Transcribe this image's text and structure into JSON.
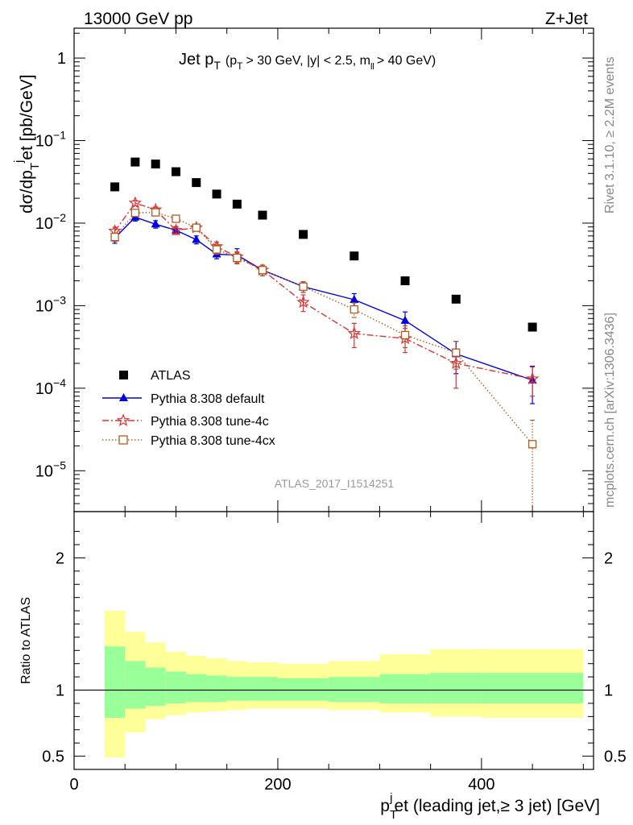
{
  "header": {
    "left": "13000 GeV pp",
    "right": "Z+Jet"
  },
  "side_labels": {
    "rivet": "Rivet 3.1.10, ≥ 2.2M events",
    "mcplots": "mcplots.cern.ch [arXiv:1306.3436]"
  },
  "analysis_id": "ATLAS_2017_I1514251",
  "chart_data": [
    {
      "type": "scatter",
      "panel": "main",
      "title": {
        "main": "Jet p",
        "main_sub": "T",
        "cut_open": "(p",
        "cut_sub": "T",
        "cut_mid": "> 30 GeV, |y| < 2.5, m",
        "cut_ll": "ll",
        "cut_close": "> 40 GeV)"
      },
      "ylabel": {
        "pre": "dσ/dp",
        "sub": "T",
        "sup": "j",
        "post": "et [pb/GeV]"
      },
      "yscale": "log",
      "ylim": [
        3.2e-06,
        2.3
      ],
      "xlim": [
        0,
        510
      ],
      "y_ticks": [
        {
          "value": 1,
          "label": "1",
          "sup": ""
        },
        {
          "value": 0.1,
          "label": "10",
          "sup": "−1"
        },
        {
          "value": 0.01,
          "label": "10",
          "sup": "−2"
        },
        {
          "value": 0.001,
          "label": "10",
          "sup": "−3"
        },
        {
          "value": 0.0001,
          "label": "10",
          "sup": "−4"
        },
        {
          "value": 1e-05,
          "label": "10",
          "sup": "−5"
        }
      ],
      "legend_position": "bottom-left",
      "series": [
        {
          "name": "ATLAS",
          "color": "#000000",
          "marker": "square-filled",
          "x": [
            40,
            60,
            80,
            100,
            120,
            140,
            160,
            185,
            225,
            275,
            325,
            375,
            450
          ],
          "y": [
            0.0275,
            0.055,
            0.052,
            0.042,
            0.031,
            0.0225,
            0.017,
            0.0125,
            0.0073,
            0.004,
            0.002,
            0.0012,
            0.00055
          ],
          "err": [
            0,
            0,
            0,
            0,
            0,
            0,
            0,
            0,
            0,
            0,
            0,
            0,
            0
          ]
        },
        {
          "name": "Pythia 8.308 default",
          "color": "#0000dd",
          "marker": "triangle-filled",
          "line": "solid",
          "x": [
            40,
            60,
            80,
            100,
            120,
            140,
            160,
            185,
            225,
            275,
            325,
            375,
            450
          ],
          "y": [
            0.0066,
            0.0118,
            0.0097,
            0.0082,
            0.0063,
            0.0042,
            0.0041,
            0.0027,
            0.0017,
            0.00118,
            0.00066,
            0.00026,
            0.000125
          ],
          "err": [
            0.0009,
            0.0012,
            0.001,
            0.0008,
            0.0007,
            0.0005,
            0.0008,
            0.0004,
            0.00025,
            0.00022,
            0.00018,
            0.00011,
            6e-05
          ]
        },
        {
          "name": "Pythia 8.308 tune-4c",
          "color": "#dd3333",
          "marker": "star-open",
          "line": "dashdot",
          "x": [
            40,
            60,
            80,
            100,
            120,
            140,
            160,
            185,
            225,
            275,
            325,
            375,
            450
          ],
          "y": [
            0.008,
            0.0175,
            0.0145,
            0.0082,
            0.0088,
            0.0052,
            0.0039,
            0.0027,
            0.0011,
            0.00046,
            0.0004,
            0.0002,
            0.00013
          ],
          "err": [
            0.0009,
            0.0013,
            0.0012,
            0.0009,
            0.0008,
            0.0007,
            0.0006,
            0.0004,
            0.00025,
            0.00015,
            0.00013,
            0.0001,
            5e-05
          ]
        },
        {
          "name": "Pythia 8.308 tune-4cx",
          "color": "#b35a1f",
          "marker": "square-open",
          "line": "dotted",
          "x": [
            40,
            60,
            80,
            100,
            120,
            140,
            160,
            185,
            225,
            275,
            325,
            375,
            450
          ],
          "y": [
            0.0068,
            0.0133,
            0.0135,
            0.0113,
            0.0088,
            0.0048,
            0.0038,
            0.0027,
            0.0017,
            0.0009,
            0.00044,
            0.00027,
            2.1e-05
          ],
          "err": [
            0.0008,
            0.0012,
            0.0011,
            0.001,
            0.0008,
            0.0006,
            0.0006,
            0.0004,
            0.00025,
            0.00018,
            0.00013,
            0.0001,
            2e-05
          ]
        }
      ]
    },
    {
      "type": "area",
      "panel": "ratio",
      "ylabel": "Ratio to ATLAS",
      "xlabel": {
        "pre": "p",
        "sub": "T",
        "sup": "j",
        "post": "et (leading jet,≥ 3 jet) [GeV]"
      },
      "ylim": [
        0.4,
        2.35
      ],
      "xlim": [
        0,
        510
      ],
      "y_ticks": [
        0.5,
        1,
        2
      ],
      "x_ticks": [
        0,
        200,
        400
      ],
      "reference_line": 1,
      "bins": [
        {
          "lo": 30,
          "hi": 50,
          "inner": [
            0.79,
            1.33
          ],
          "outer": [
            0.49,
            1.6
          ]
        },
        {
          "lo": 50,
          "hi": 70,
          "inner": [
            0.86,
            1.22
          ],
          "outer": [
            0.68,
            1.44
          ]
        },
        {
          "lo": 70,
          "hi": 90,
          "inner": [
            0.88,
            1.17
          ],
          "outer": [
            0.78,
            1.36
          ]
        },
        {
          "lo": 90,
          "hi": 110,
          "inner": [
            0.9,
            1.14
          ],
          "outer": [
            0.81,
            1.29
          ]
        },
        {
          "lo": 110,
          "hi": 130,
          "inner": [
            0.91,
            1.12
          ],
          "outer": [
            0.83,
            1.26
          ]
        },
        {
          "lo": 130,
          "hi": 150,
          "inner": [
            0.91,
            1.11
          ],
          "outer": [
            0.84,
            1.24
          ]
        },
        {
          "lo": 150,
          "hi": 170,
          "inner": [
            0.92,
            1.1
          ],
          "outer": [
            0.85,
            1.22
          ]
        },
        {
          "lo": 170,
          "hi": 200,
          "inner": [
            0.92,
            1.1
          ],
          "outer": [
            0.86,
            1.21
          ]
        },
        {
          "lo": 200,
          "hi": 250,
          "inner": [
            0.92,
            1.09
          ],
          "outer": [
            0.86,
            1.2
          ]
        },
        {
          "lo": 250,
          "hi": 300,
          "inner": [
            0.91,
            1.1
          ],
          "outer": [
            0.85,
            1.22
          ]
        },
        {
          "lo": 300,
          "hi": 350,
          "inner": [
            0.9,
            1.12
          ],
          "outer": [
            0.83,
            1.27
          ]
        },
        {
          "lo": 350,
          "hi": 400,
          "inner": [
            0.9,
            1.13
          ],
          "outer": [
            0.8,
            1.31
          ]
        },
        {
          "lo": 400,
          "hi": 500,
          "inner": [
            0.9,
            1.13
          ],
          "outer": [
            0.79,
            1.31
          ]
        }
      ],
      "colors": {
        "inner": "#99ff99",
        "outer": "#ffff99"
      }
    }
  ]
}
